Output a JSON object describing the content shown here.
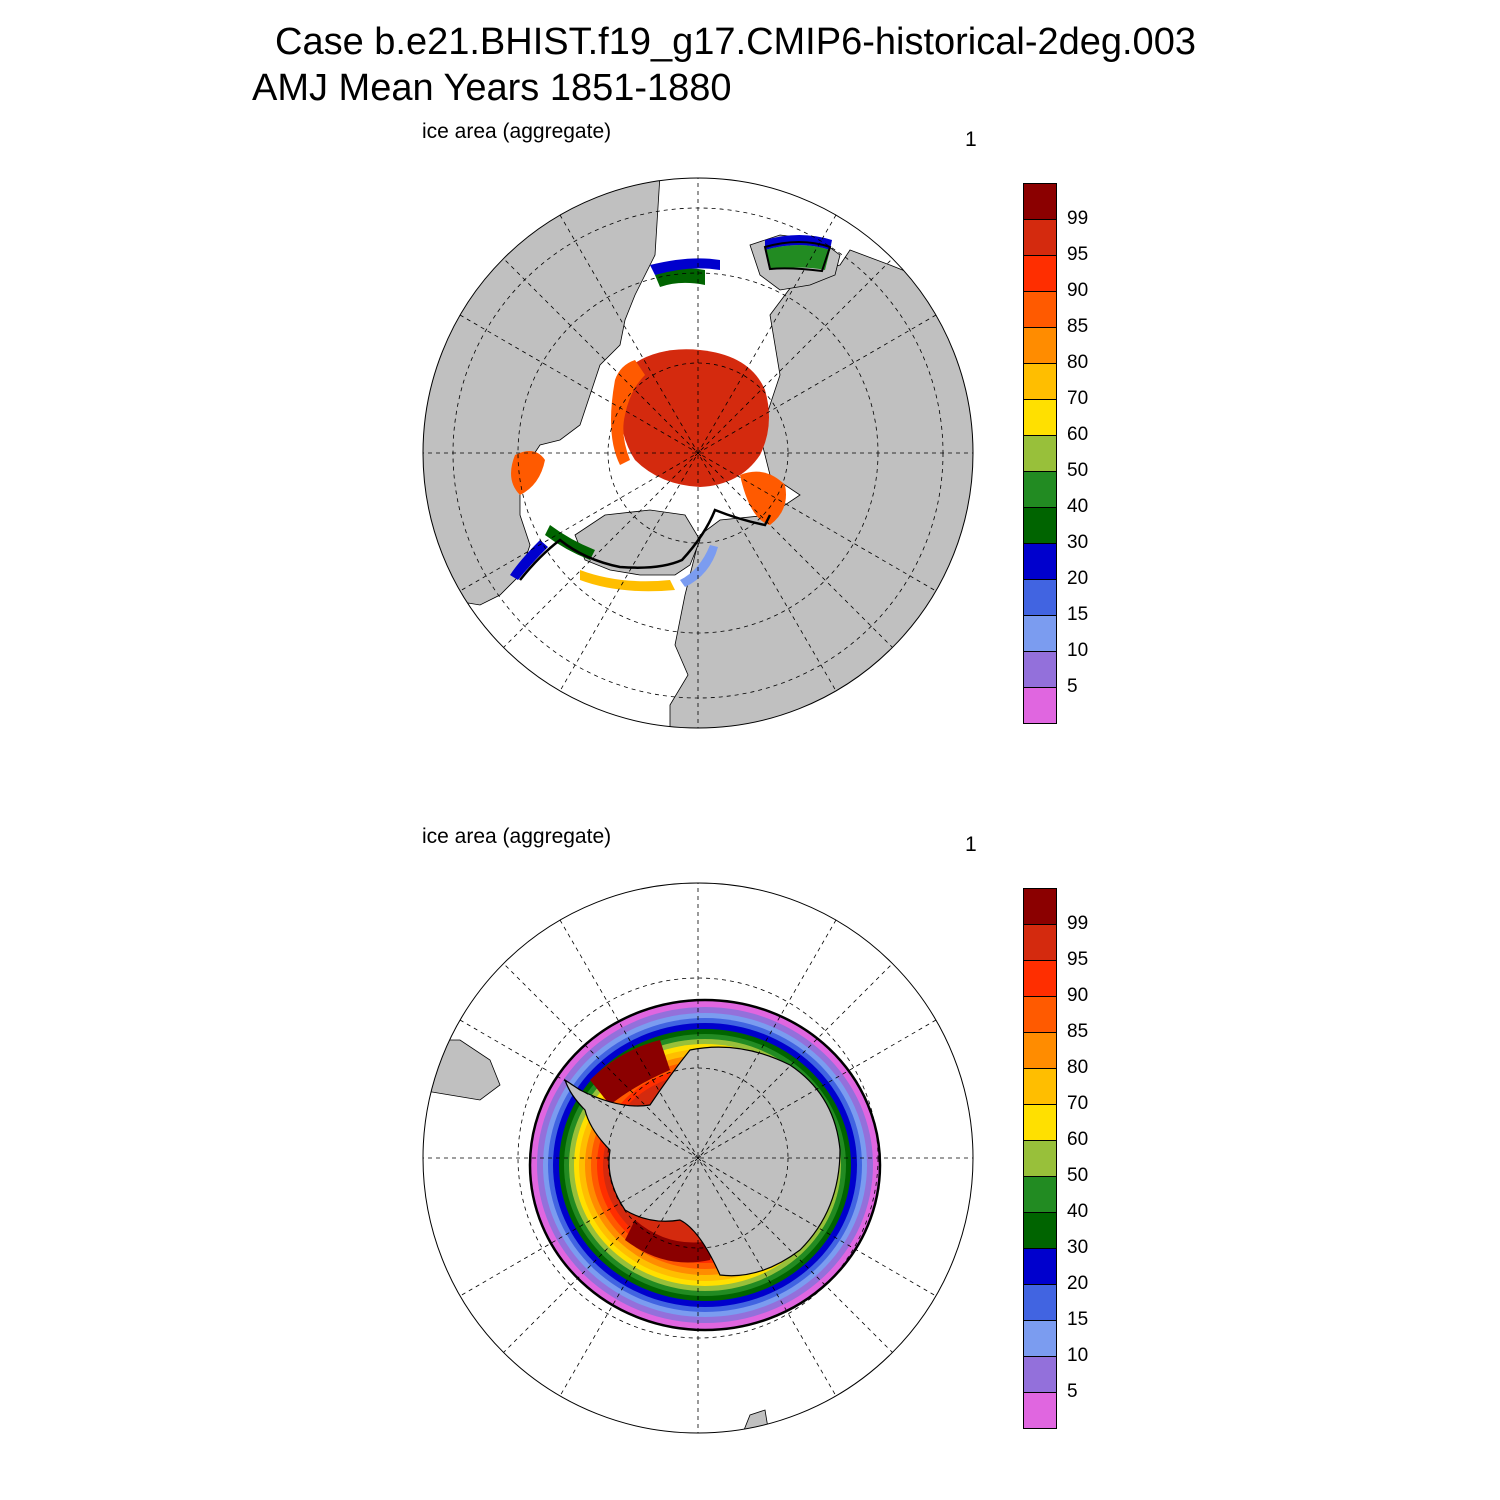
{
  "header": {
    "title_line1": "Case b.e21.BHIST.f19_g17.CMIP6-historical-2deg.003",
    "title_line2": "AMJ Mean   Years 1851-1880"
  },
  "panels": [
    {
      "id": "nh",
      "left_label": "ice area  (aggregate)",
      "right_label": "1"
    },
    {
      "id": "sh",
      "left_label": "ice area  (aggregate)",
      "right_label": "1"
    }
  ],
  "colorbar": {
    "labels": [
      "99",
      "95",
      "90",
      "85",
      "80",
      "70",
      "60",
      "50",
      "40",
      "30",
      "20",
      "15",
      "10",
      "5"
    ],
    "colors": [
      "#8b0000",
      "#d42a0e",
      "#ff2e00",
      "#ff5a00",
      "#ff8c00",
      "#ffbe00",
      "#ffe000",
      "#98c03a",
      "#228b22",
      "#006400",
      "#0000cd",
      "#4164e1",
      "#7b9cf0",
      "#9370db",
      "#e066e0"
    ]
  },
  "map": {
    "land_color": "#c0c0c0",
    "ocean_color": "#ffffff"
  }
}
